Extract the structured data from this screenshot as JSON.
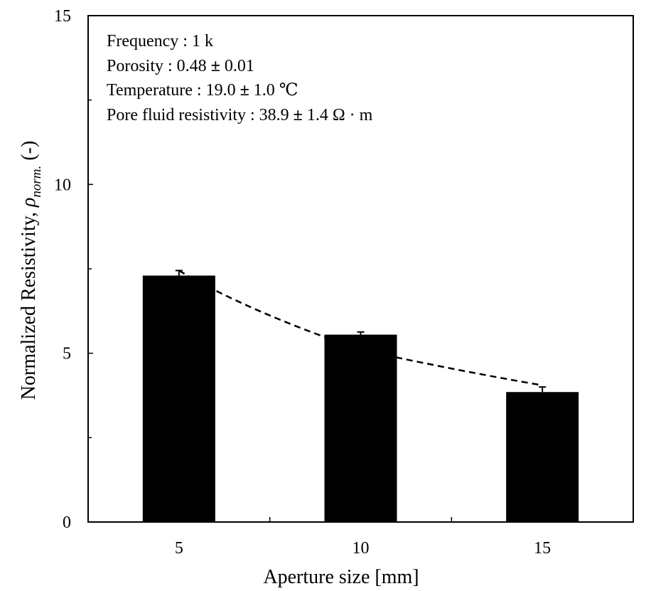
{
  "chart_data": {
    "type": "bar",
    "categories": [
      "5",
      "10",
      "15"
    ],
    "values": [
      7.3,
      5.55,
      3.85
    ],
    "error_bars": [
      0.15,
      0.08,
      0.15
    ],
    "trend_line": {
      "style": "dashed",
      "x": [
        "5",
        "10",
        "15"
      ],
      "y": [
        7.45,
        5.1,
        4.05
      ]
    },
    "xlabel": "Aperture size [mm]",
    "ylabel": "Normalized Resistivity, ",
    "ylabel_symbol": "ρ",
    "ylabel_subscript": "norm.",
    "ylabel_unit": " (-)",
    "ylim": [
      0,
      15
    ],
    "yticks": [
      "0",
      "5",
      "10",
      "15"
    ],
    "ymajor_step": 5,
    "yminor_step": 2.5,
    "grid": false,
    "bar_color": "#000000",
    "annotations": [
      {
        "prefix": "Frequency : 1 k",
        "pm": "",
        "suffix": ""
      },
      {
        "prefix": "Porosity : 0.48 ",
        "pm": "±",
        "suffix": " 0.01"
      },
      {
        "prefix": "Temperature : 19.0 ",
        "pm": "±",
        "suffix": " 1.0 ℃"
      },
      {
        "prefix": "Pore fluid resistivity :  38.9 ",
        "pm": "±",
        "suffix": " 1.4 Ω · m"
      }
    ]
  }
}
